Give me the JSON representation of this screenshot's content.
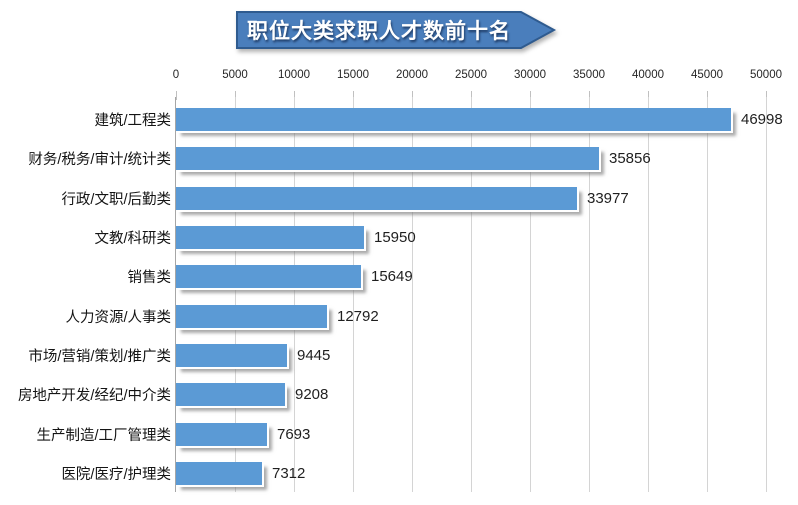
{
  "banner": {
    "title": "职位大类求职人才数前十名"
  },
  "chart_data": {
    "type": "bar",
    "orientation": "horizontal",
    "title": "职位大类求职人才数前十名",
    "categories": [
      "建筑/工程类",
      "财务/税务/审计/统计类",
      "行政/文职/后勤类",
      "文教/科研类",
      "销售类",
      "人力资源/人事类",
      "市场/营销/策划/推广类",
      "房地产开发/经纪/中介类",
      "生产制造/工厂管理类",
      "医院/医疗/护理类"
    ],
    "values": [
      46998,
      35856,
      33977,
      15950,
      15649,
      12792,
      9445,
      9208,
      7693,
      7312
    ],
    "value_labels": [
      "46998",
      "35856",
      "33977",
      "15950",
      "15649",
      "12792",
      "9445",
      "9208",
      "7693",
      "7312"
    ],
    "x_ticks": [
      "0",
      "5000",
      "10000",
      "15000",
      "20000",
      "25000",
      "30000",
      "35000",
      "40000",
      "45000",
      "50000"
    ],
    "xlim": [
      0,
      50000
    ],
    "axis_position": "top",
    "grid": true,
    "legend": "none",
    "value_labels_shown": true
  },
  "colors": {
    "bar": "#5B9AD5",
    "banner_fill": "#4A7EBC",
    "banner_border": "#2F5B8F",
    "grid": "#d4d4d4",
    "axis": "#a6a6a6",
    "tick": "#c0c0c0",
    "value_text": "#1f1f1f",
    "category_text": "#141414",
    "banner_text": "#ffffff"
  }
}
